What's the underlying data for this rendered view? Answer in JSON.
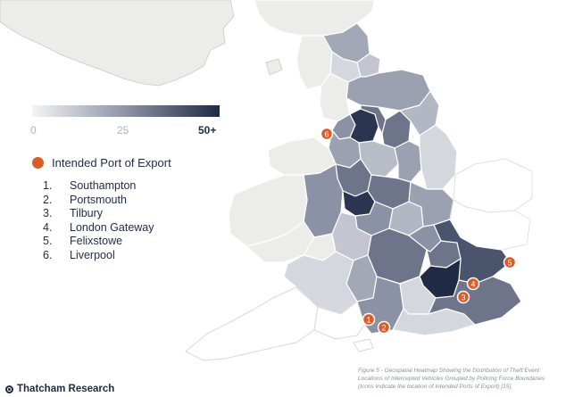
{
  "legend": {
    "scale_min_label": "0",
    "scale_mid_label": "25",
    "scale_max_label": "50+",
    "color_low": "#f4f4f6",
    "color_high": "#1f2a44"
  },
  "ports_legend": {
    "label": "Intended Port of Export",
    "marker_color": "#d95c2b",
    "ports": [
      {
        "number": "1.",
        "name": "Southampton"
      },
      {
        "number": "2.",
        "name": "Portsmouth"
      },
      {
        "number": "3.",
        "name": "Tilbury"
      },
      {
        "number": "4.",
        "name": "London Gateway"
      },
      {
        "number": "5.",
        "name": "Felixstowe"
      },
      {
        "number": "6.",
        "name": "Liverpool"
      }
    ]
  },
  "map_markers": [
    "1",
    "2",
    "3",
    "4",
    "5",
    "6"
  ],
  "caption": "Figure 5 - Geospatial Heatmap Showing the Distribution of Theft Event Locations of Intercepted Vehicles Grouped by Policing Force Boundaries (Icons Indicate the location of Intended Ports of Export) [15].",
  "brand": "Thatcham Research",
  "colors": {
    "background_region": "#ececea",
    "region_outline": "#ffffff",
    "darkest_region": "#1f2a44"
  }
}
